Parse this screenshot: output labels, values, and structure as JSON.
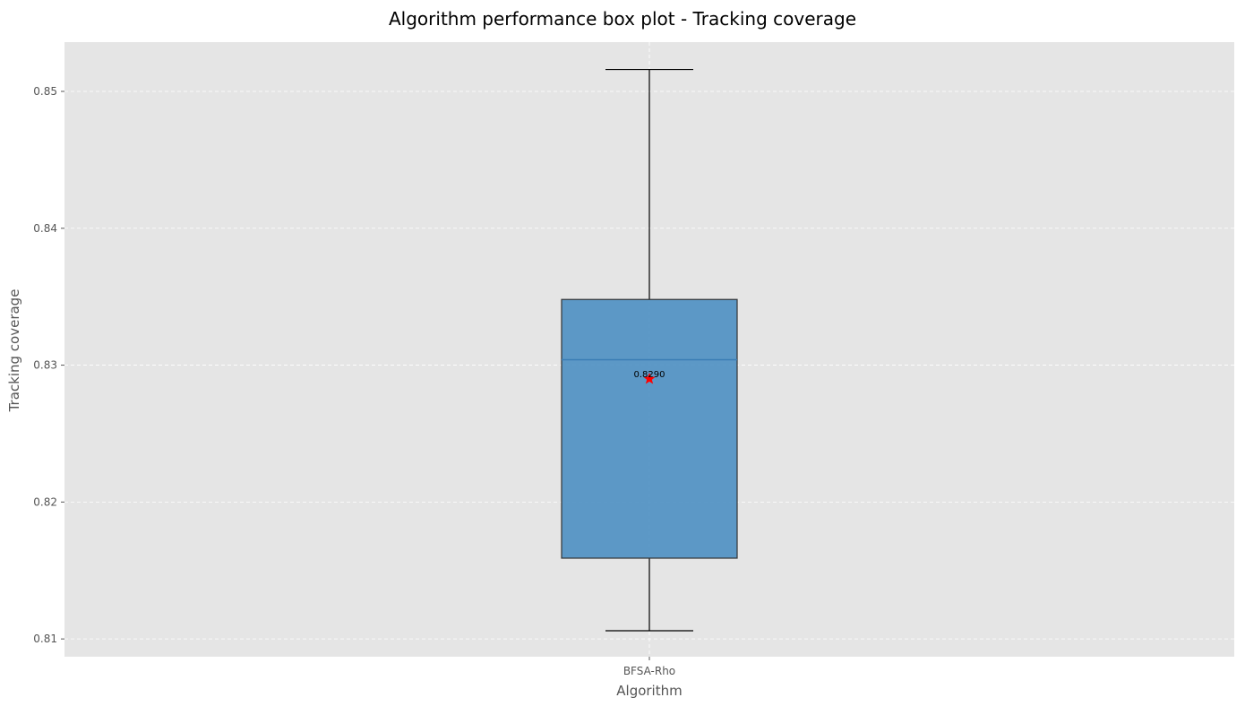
{
  "chart_data": {
    "type": "box",
    "title": "Algorithm performance box plot - Tracking coverage",
    "xlabel": "Algorithm",
    "ylabel": "Tracking coverage",
    "ylim": [
      0.8087,
      0.8536
    ],
    "yticks": [
      0.81,
      0.82,
      0.83,
      0.84,
      0.85
    ],
    "ytick_labels": [
      "0.81",
      "0.82",
      "0.83",
      "0.84",
      "0.85"
    ],
    "grid": true,
    "categories": [
      "BFSA-Rho"
    ],
    "series": [
      {
        "category": "BFSA-Rho",
        "whisker_low": 0.8106,
        "q1": 0.8159,
        "median": 0.8304,
        "q3": 0.8348,
        "whisker_high": 0.8516,
        "mean": 0.829,
        "mean_label": "0.8290"
      }
    ],
    "colors": {
      "box_fill": "#4c8fc2",
      "box_edge": "#333333",
      "median_line": "#3a7db5",
      "mean_marker": "#ff0000",
      "plot_background": "#e5e5e5",
      "grid": "#ffffff"
    }
  }
}
